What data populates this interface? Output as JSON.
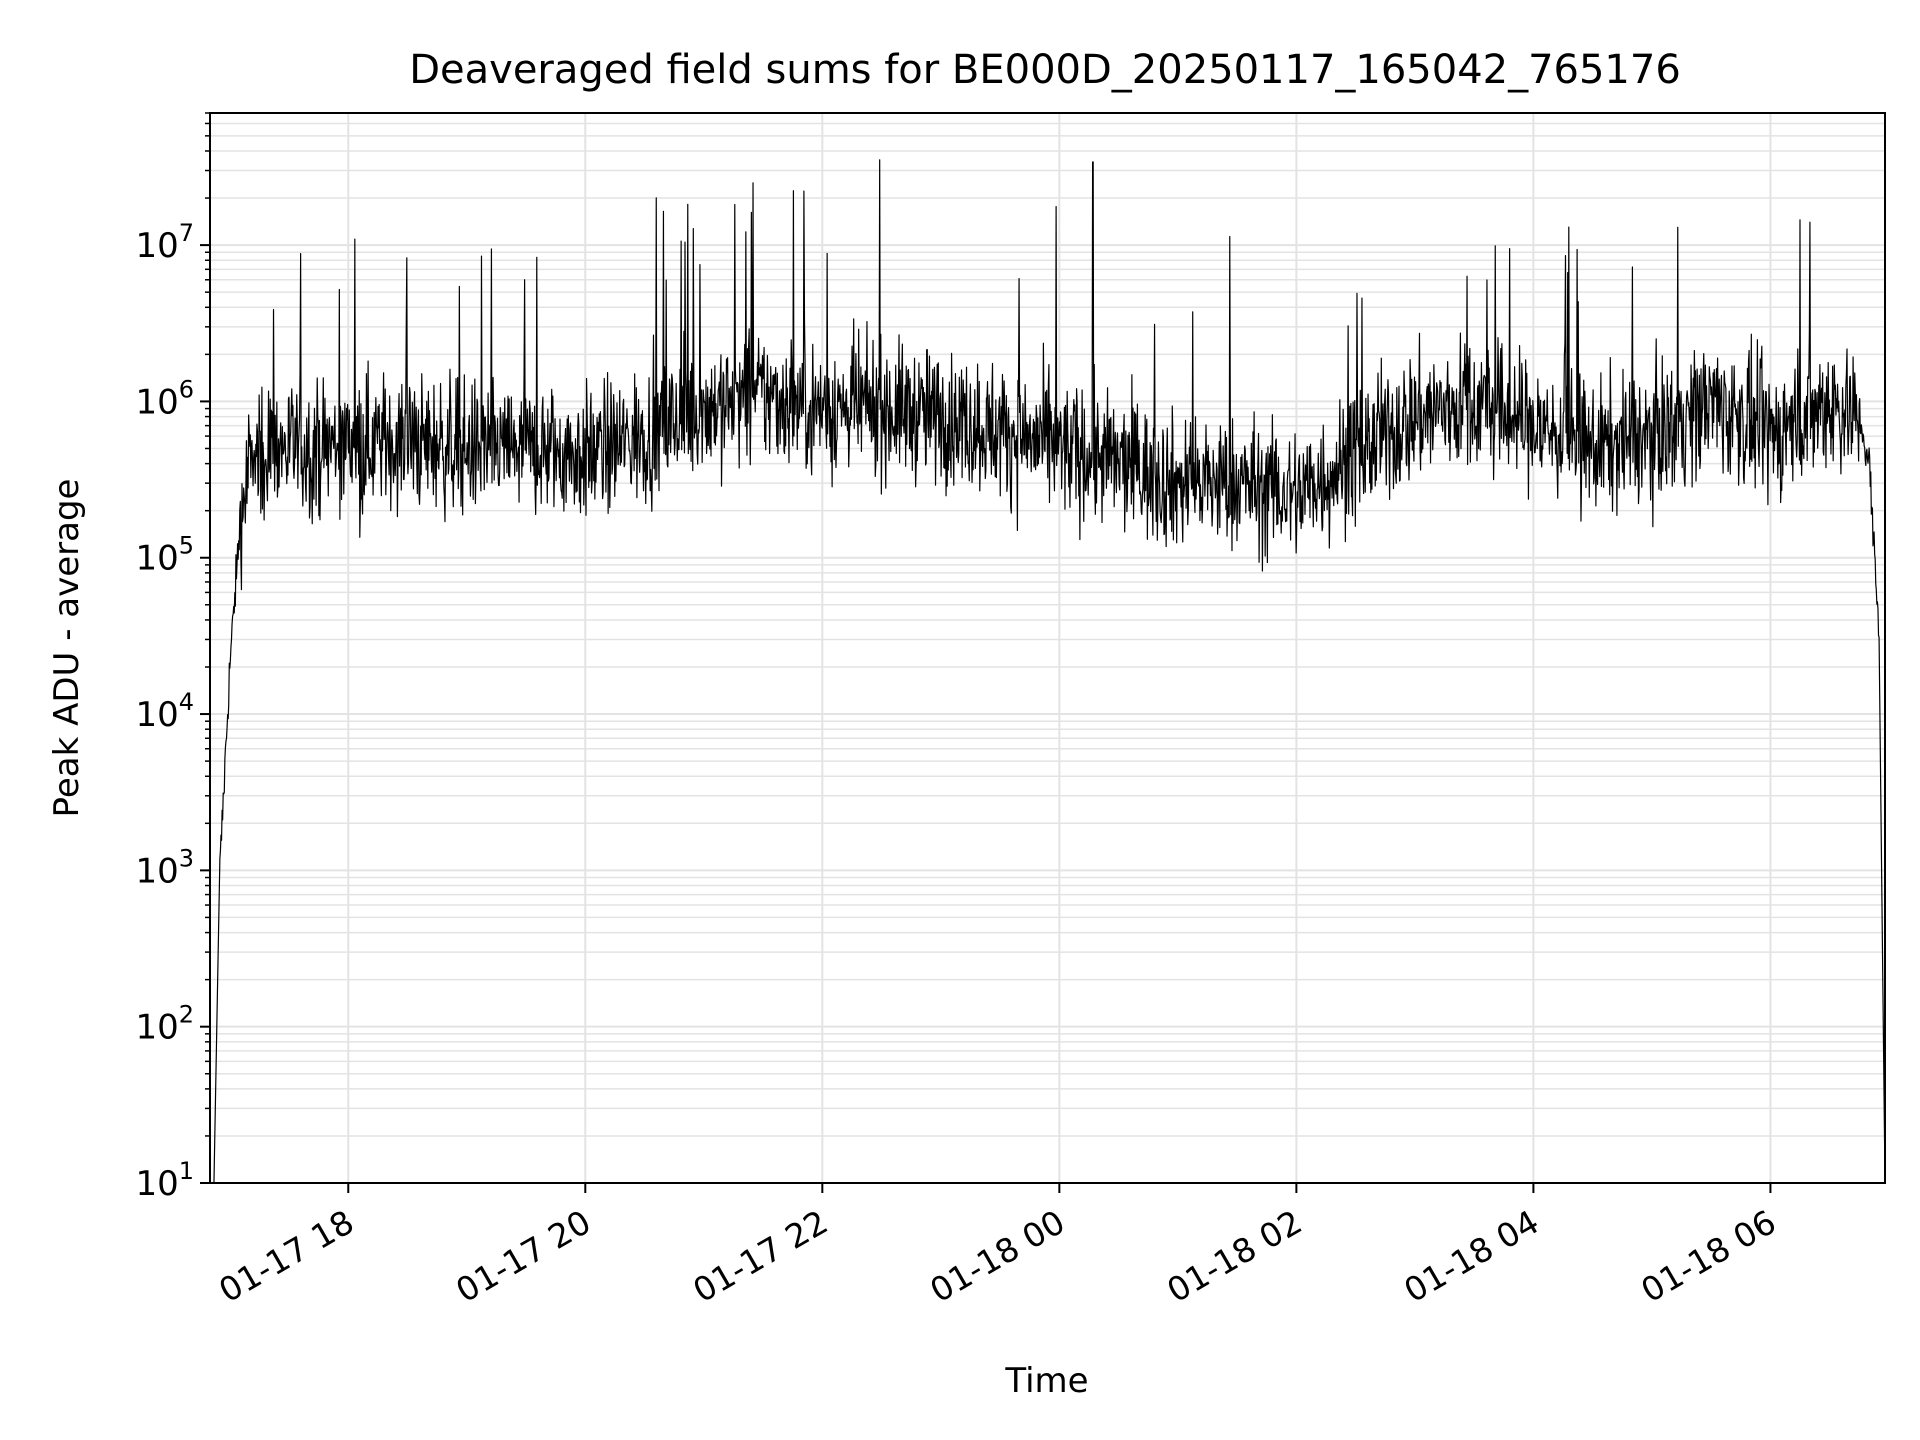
{
  "chart_data": {
    "type": "line",
    "title": "Deaveraged field sums for BE000D_20250117_165042_765176",
    "xlabel": "Time",
    "ylabel": "Peak ADU - average",
    "x_axis": {
      "kind": "datetime",
      "range": [
        "2025-01-17 16:50",
        "2025-01-18 06:58"
      ],
      "tick_labels": [
        "01-17 18",
        "01-17 20",
        "01-17 22",
        "01-18 00",
        "01-18 02",
        "01-18 04",
        "01-18 06"
      ],
      "tick_times": [
        "2025-01-17 18:00",
        "2025-01-17 20:00",
        "2025-01-17 22:00",
        "2025-01-18 00:00",
        "2025-01-18 02:00",
        "2025-01-18 04:00",
        "2025-01-18 06:00"
      ],
      "tick_label_rotation_deg": 30
    },
    "y_axis": {
      "scale": "log",
      "range": [
        10,
        70000000
      ],
      "ticks": [
        10,
        100,
        1000,
        10000,
        100000,
        1000000,
        10000000
      ],
      "tick_labels": [
        {
          "base": "10",
          "exp": "1"
        },
        {
          "base": "10",
          "exp": "2"
        },
        {
          "base": "10",
          "exp": "3"
        },
        {
          "base": "10",
          "exp": "4"
        },
        {
          "base": "10",
          "exp": "5"
        },
        {
          "base": "10",
          "exp": "6"
        },
        {
          "base": "10",
          "exp": "7"
        }
      ]
    },
    "grid": true,
    "legend": "none",
    "series": [
      {
        "color": "#000000",
        "x": [
          "2025-01-17 16:55",
          "2025-01-17 17:00",
          "2025-01-17 17:05",
          "2025-01-17 17:10",
          "2025-01-17 17:20",
          "2025-01-17 17:40",
          "2025-01-17 18:00",
          "2025-01-17 18:30",
          "2025-01-17 19:00",
          "2025-01-17 19:30",
          "2025-01-17 20:00",
          "2025-01-17 20:30",
          "2025-01-17 21:00",
          "2025-01-17 21:30",
          "2025-01-17 22:00",
          "2025-01-17 22:30",
          "2025-01-17 23:00",
          "2025-01-17 23:30",
          "2025-01-18 00:00",
          "2025-01-18 00:30",
          "2025-01-18 01:00",
          "2025-01-18 01:30",
          "2025-01-18 02:00",
          "2025-01-18 02:30",
          "2025-01-18 03:00",
          "2025-01-18 03:30",
          "2025-01-18 04:00",
          "2025-01-18 04:30",
          "2025-01-18 05:00",
          "2025-01-18 05:30",
          "2025-01-18 06:00",
          "2025-01-18 06:30",
          "2025-01-18 06:45",
          "2025-01-18 06:50",
          "2025-01-18 06:55"
        ],
        "values": [
          1000,
          20000,
          150000,
          400000,
          500000,
          500000,
          550000,
          550000,
          500000,
          500000,
          450000,
          600000,
          900000,
          1100000,
          900000,
          900000,
          800000,
          650000,
          500000,
          400000,
          300000,
          300000,
          250000,
          450000,
          800000,
          1000000,
          700000,
          500000,
          600000,
          1000000,
          600000,
          1000000,
          800000,
          400000,
          30000
        ]
      }
    ],
    "annotations": {
      "spikes": [
        {
          "x": "2025-01-17 21:25",
          "value": 25000000
        },
        {
          "x": "2025-01-18 00:17",
          "value": 34000000
        },
        {
          "x": "2025-01-18 05:13",
          "value": 13000000
        },
        {
          "x": "2025-01-18 06:15",
          "value": 14500000
        },
        {
          "x": "2025-01-18 06:20",
          "value": 14000000
        },
        {
          "x": "2025-01-18 03:48",
          "value": 9500000
        },
        {
          "x": "2025-01-17 20:58",
          "value": 7500000
        }
      ]
    }
  }
}
